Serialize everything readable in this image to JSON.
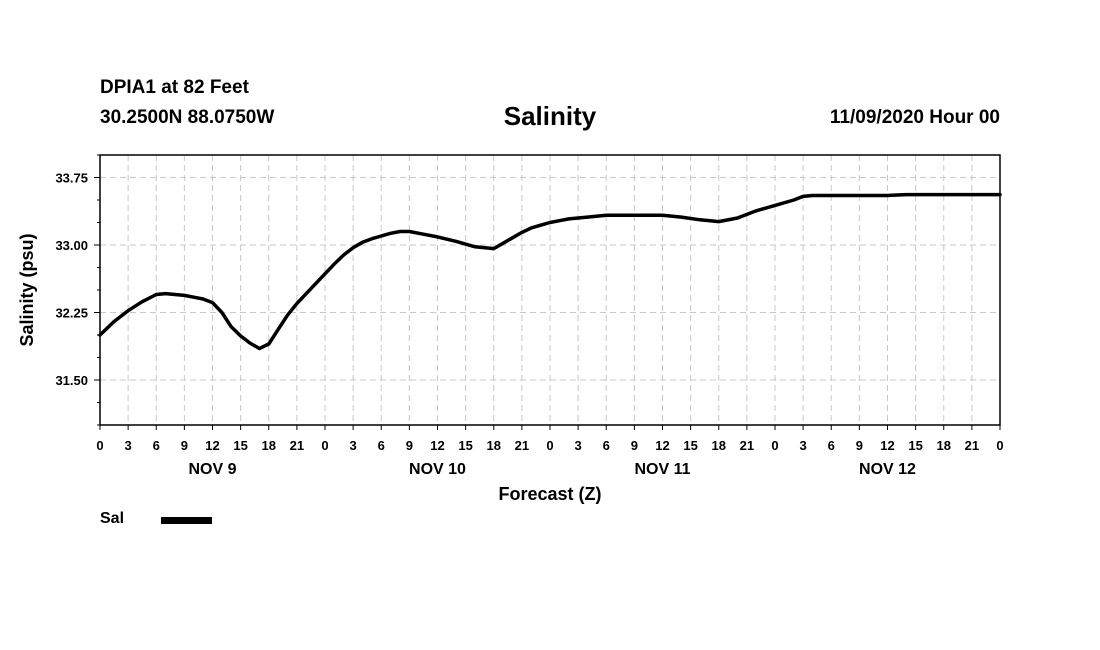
{
  "header": {
    "station": "DPIA1 at 82 Feet",
    "coordinates": "30.2500N 88.0750W",
    "title": "Salinity",
    "issued": "11/09/2020 Hour 00"
  },
  "legend": {
    "label": "Sal"
  },
  "chart_data": {
    "type": "line",
    "title": "Salinity",
    "xlabel": "Forecast (Z)",
    "ylabel": "Salinity (psu)",
    "x_unit": "hours from 11/09/2020 00Z",
    "xlim": [
      0,
      96
    ],
    "ylim": [
      31.0,
      34.0
    ],
    "y_ticks": [
      31.5,
      32.25,
      33.0,
      33.75
    ],
    "y_tick_labels": [
      "31.50",
      "32.25",
      "33.00",
      "33.75"
    ],
    "x_tick_labels": [
      "0",
      "3",
      "6",
      "9",
      "12",
      "15",
      "18",
      "21",
      "0",
      "3",
      "6",
      "9",
      "12",
      "15",
      "18",
      "21",
      "0",
      "3",
      "6",
      "9",
      "12",
      "15",
      "18",
      "21",
      "0",
      "3",
      "6",
      "9",
      "12",
      "15",
      "18",
      "21",
      "0"
    ],
    "day_labels": [
      "NOV 9",
      "NOV 10",
      "NOV 11",
      "NOV 12"
    ],
    "grid": true,
    "legend_position": "bottom-left",
    "series": [
      {
        "name": "Sal",
        "color": "#000000",
        "x": [
          0,
          1.5,
          3,
          4.5,
          6,
          7,
          8,
          9,
          10,
          11,
          12,
          13,
          14,
          15,
          16,
          17,
          18,
          19,
          20,
          21,
          22,
          23,
          24,
          25,
          26,
          27,
          28,
          29,
          30,
          31,
          32,
          33,
          34,
          36,
          38,
          40,
          42,
          44,
          45,
          46,
          47,
          48,
          49,
          50,
          51,
          52,
          54,
          56,
          58,
          60,
          62,
          64,
          66,
          68,
          70,
          72,
          74,
          75,
          76,
          78,
          80,
          82,
          84,
          86,
          88,
          90,
          92,
          94,
          96
        ],
        "y": [
          32.0,
          32.15,
          32.27,
          32.37,
          32.45,
          32.46,
          32.45,
          32.44,
          32.42,
          32.4,
          32.36,
          32.25,
          32.09,
          31.99,
          31.91,
          31.85,
          31.9,
          32.06,
          32.22,
          32.35,
          32.46,
          32.57,
          32.68,
          32.79,
          32.89,
          32.97,
          33.03,
          33.07,
          33.1,
          33.13,
          33.15,
          33.15,
          33.13,
          33.09,
          33.04,
          32.98,
          32.96,
          33.08,
          33.14,
          33.19,
          33.22,
          33.25,
          33.27,
          33.29,
          33.3,
          33.31,
          33.33,
          33.33,
          33.33,
          33.33,
          33.31,
          33.28,
          33.26,
          33.3,
          33.38,
          33.44,
          33.5,
          33.54,
          33.55,
          33.55,
          33.55,
          33.55,
          33.55,
          33.56,
          33.56,
          33.56,
          33.56,
          33.56,
          33.56
        ]
      }
    ]
  }
}
